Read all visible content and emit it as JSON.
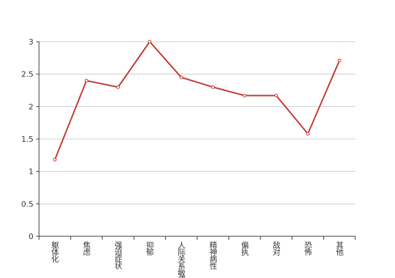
{
  "chart_data": {
    "type": "line",
    "categories": [
      "躯体化",
      "焦虑",
      "强迫症状",
      "抑郁",
      "人际关系敏感",
      "精神病性",
      "偏执",
      "敌对",
      "恐怖",
      "其他"
    ],
    "series": [
      {
        "values": [
          1.18,
          2.4,
          2.3,
          3.0,
          2.45,
          2.3,
          2.17,
          2.17,
          1.58,
          2.71
        ],
        "color": "#c23531"
      }
    ],
    "ylim": [
      0,
      3
    ],
    "yticks": [
      0,
      0.5,
      1,
      1.5,
      2,
      2.5,
      3
    ],
    "grid": true
  }
}
